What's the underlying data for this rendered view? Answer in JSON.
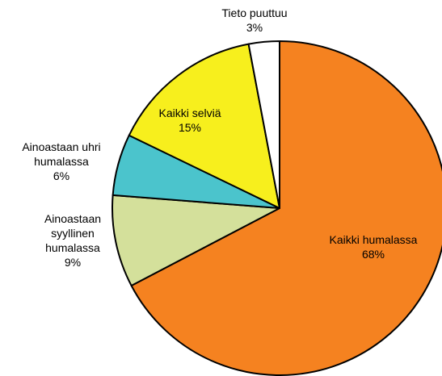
{
  "chart_data": {
    "type": "pie",
    "categories": [
      "Kaikki humalassa",
      "Ainoastaan syyllinen humalassa",
      "Ainoastaan uhri humalassa",
      "Kaikki selviä",
      "Tieto puuttuu"
    ],
    "values": [
      68,
      9,
      6,
      15,
      3
    ],
    "value_labels": [
      "68%",
      "9%",
      "6%",
      "15%",
      "3%"
    ],
    "colors": [
      "#f58220",
      "#d4e09b",
      "#4bc4cc",
      "#f7ef1d",
      "#ffffff"
    ]
  }
}
